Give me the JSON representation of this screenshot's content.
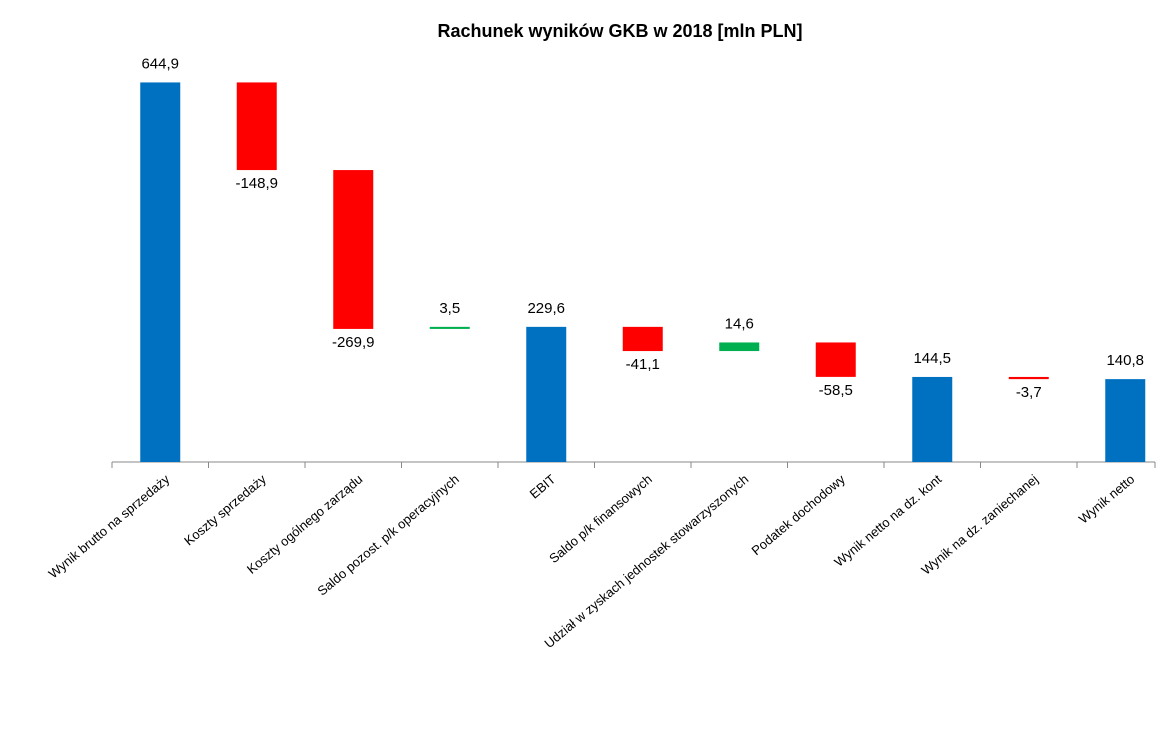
{
  "chart_data": {
    "type": "waterfall",
    "title": "Rachunek wyników GKB w 2018 [mln PLN]",
    "categories": [
      "Wynik brutto na sprzedaży",
      "Koszty sprzedaży",
      "Koszty ogólnego zarządu",
      "Saldo pozost. p/k operacyjnych",
      "EBIT",
      "Saldo p/k finansowych",
      "Udział w zyskach jednostek stowarzyszonych",
      "Podatek dochodowy",
      "Wynik netto na dz. kont",
      "Wynik na dz. zaniechanej",
      "Wynik netto"
    ],
    "values": [
      644.9,
      -148.9,
      -269.9,
      3.5,
      229.6,
      -41.1,
      14.6,
      -58.5,
      144.5,
      -3.7,
      140.8
    ],
    "value_labels": [
      "644,9",
      "-148,9",
      "-269,9",
      "3,5",
      "229,6",
      "-41,1",
      "14,6",
      "-58,5",
      "144,5",
      "-3,7",
      "140,8"
    ],
    "totals": [
      true,
      false,
      false,
      false,
      true,
      false,
      false,
      false,
      true,
      false,
      true
    ],
    "colors": [
      "#0070c0",
      "#ff0000",
      "#ff0000",
      "#00b050",
      "#0070c0",
      "#ff0000",
      "#00b050",
      "#ff0000",
      "#0070c0",
      "#ff0000",
      "#0070c0"
    ],
    "ylim": [
      0,
      700
    ]
  }
}
